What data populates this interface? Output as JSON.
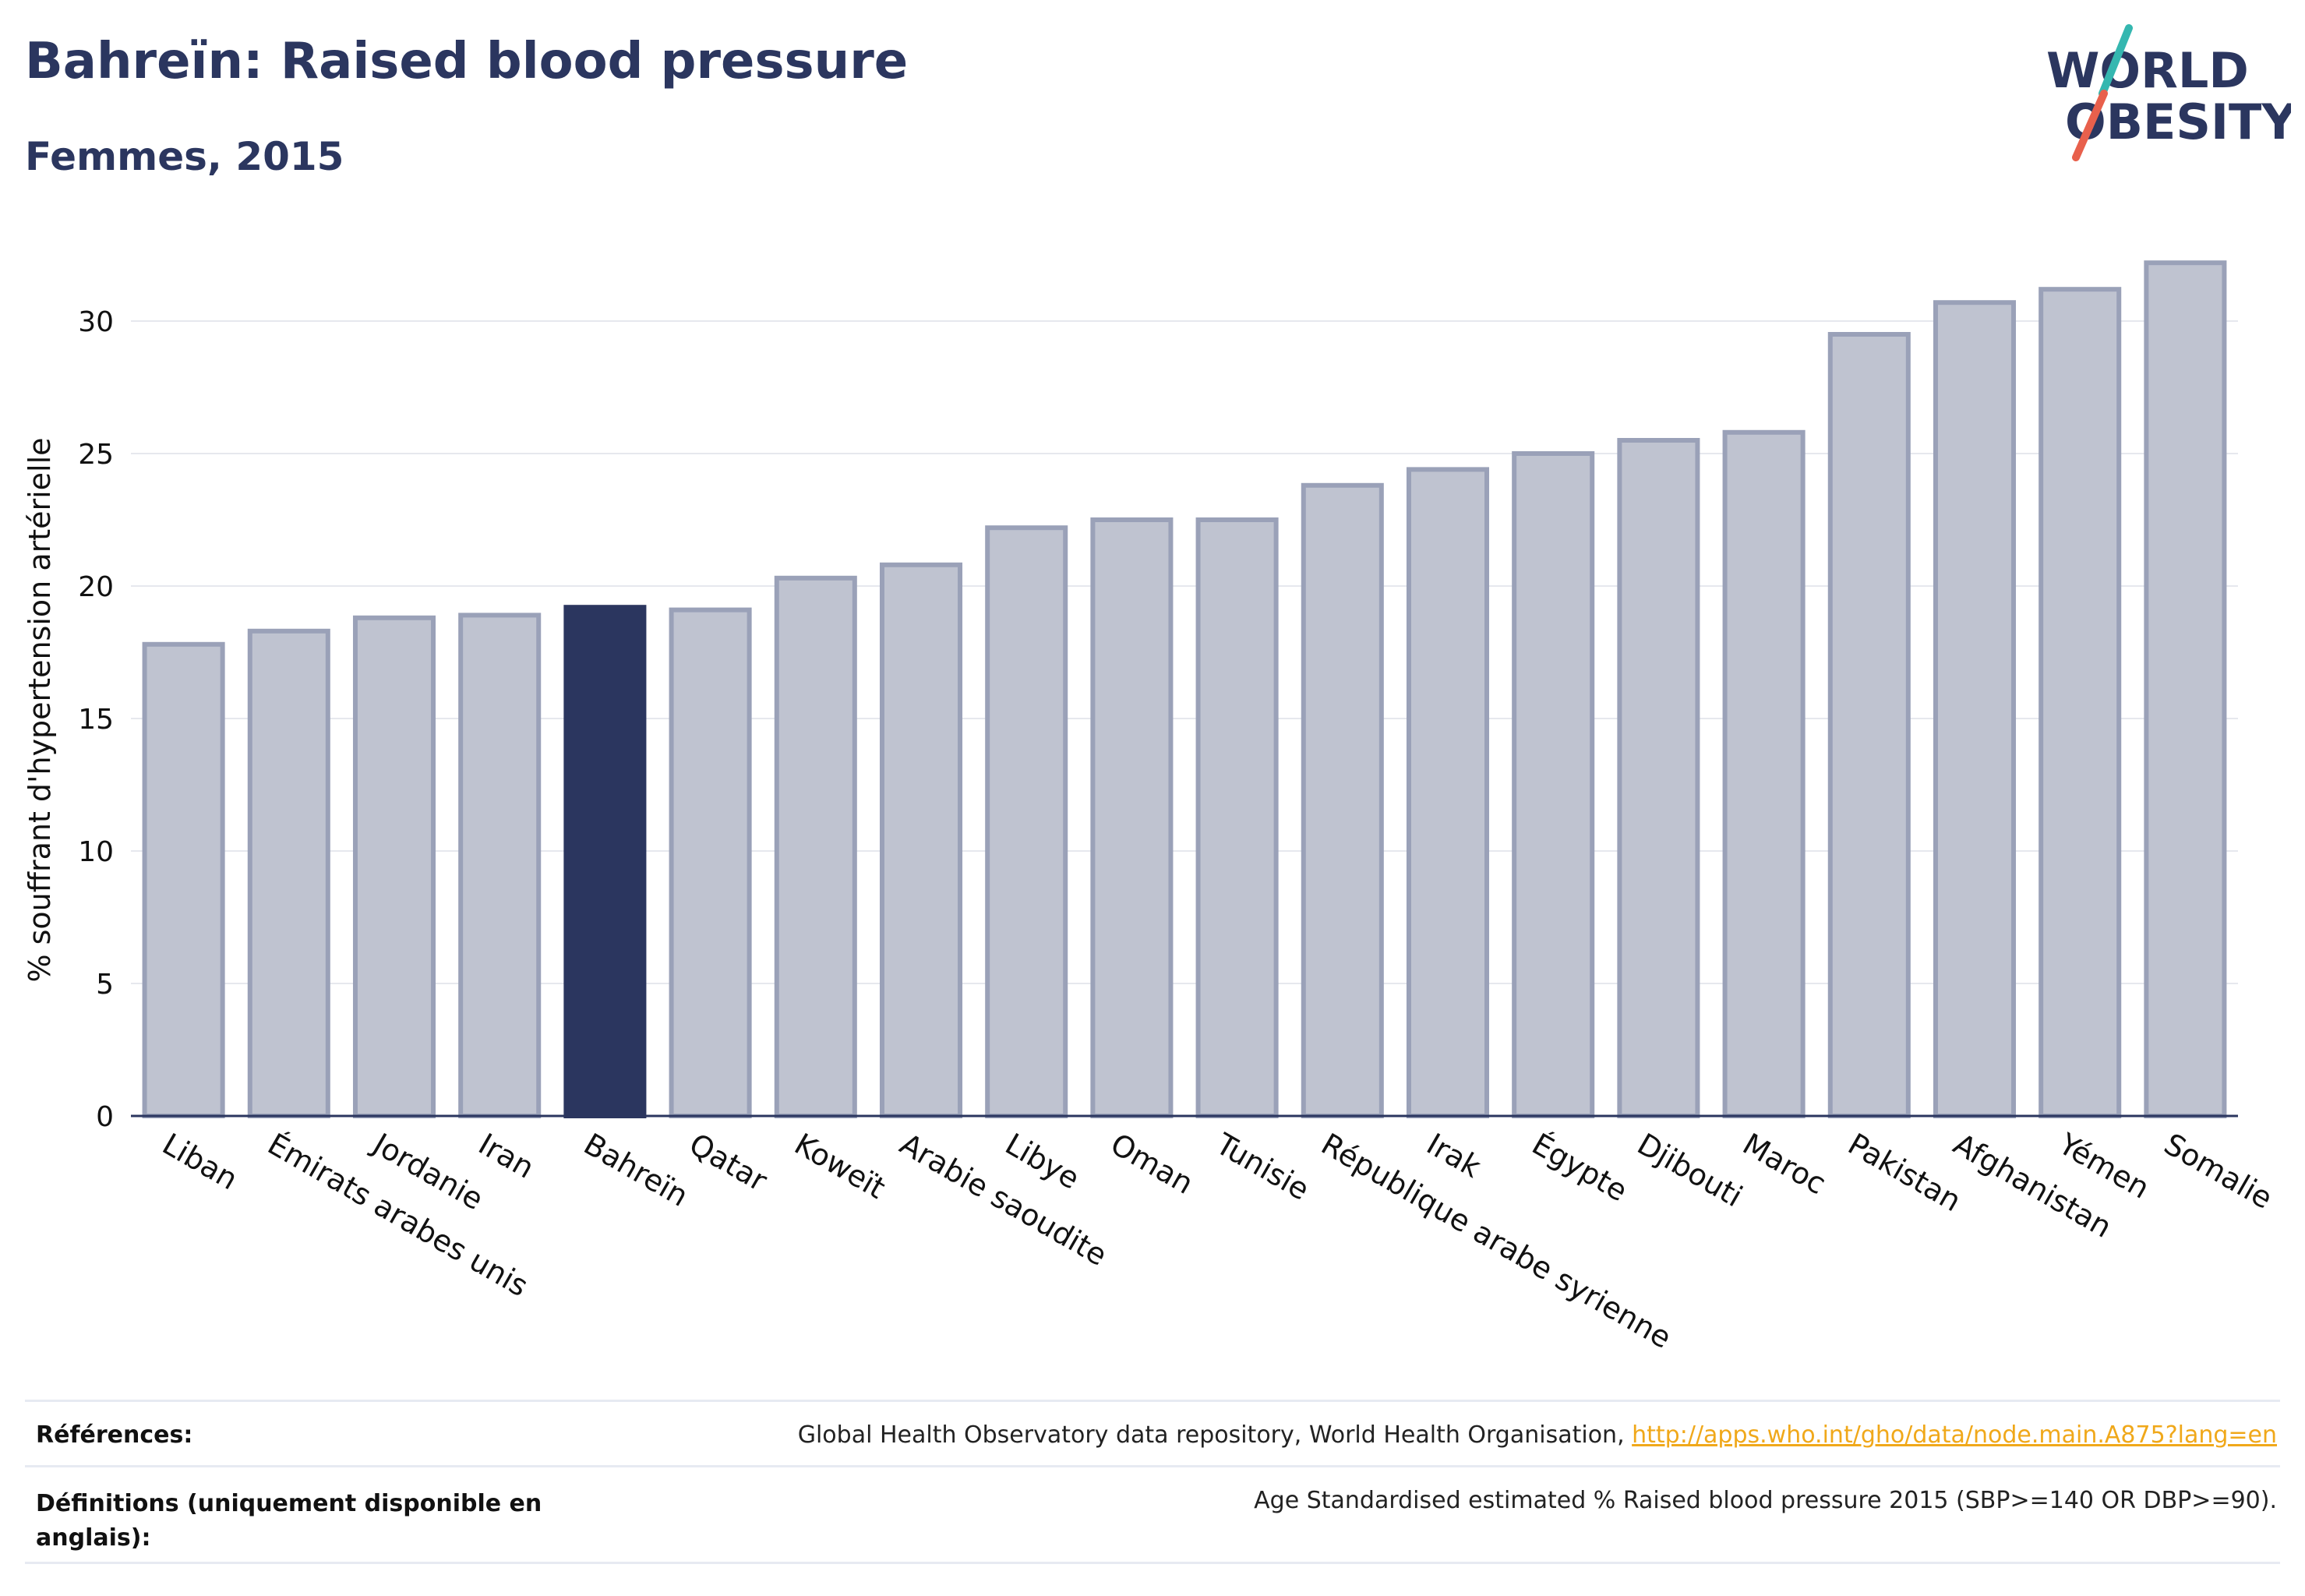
{
  "header": {
    "title": "Bahreïn: Raised blood pressure",
    "subtitle": "Femmes, 2015"
  },
  "logo": {
    "line1": "WORLD",
    "line2": "OBESITY",
    "colors": {
      "text": "#2b365f",
      "slash_teal": "#35b7b0",
      "slash_red": "#e8604c"
    }
  },
  "chart_data": {
    "type": "bar",
    "title": "",
    "xlabel": "",
    "ylabel": "% souffrant d'hypertension artérielle",
    "ylim": [
      0,
      33
    ],
    "yticks": [
      0,
      5,
      10,
      15,
      20,
      25,
      30
    ],
    "grid": true,
    "highlight": "Bahreïn",
    "colors": {
      "bar": "#bfc3d0",
      "bar_edge": "#9aa1b8",
      "highlight": "#2b365f",
      "grid": "#e6e8ee",
      "axis": "#2b365f"
    },
    "categories": [
      "Liban",
      "Émirats arabes unis",
      "Jordanie",
      "Iran",
      "Bahreïn",
      "Qatar",
      "Koweït",
      "Arabie saoudite",
      "Libye",
      "Oman",
      "Tunisie",
      "République arabe syrienne",
      "Irak",
      "Égypte",
      "Djibouti",
      "Maroc",
      "Pakistan",
      "Afghanistan",
      "Yémen",
      "Somalie"
    ],
    "values": [
      17.8,
      18.3,
      18.8,
      18.9,
      19.2,
      19.1,
      20.3,
      20.8,
      22.2,
      22.5,
      22.5,
      23.8,
      24.4,
      25.0,
      25.5,
      25.8,
      29.5,
      30.7,
      31.2,
      32.2
    ]
  },
  "footer": {
    "references_label": "Références:",
    "references_text": "Global Health Observatory data repository, World Health Organisation, ",
    "references_link": "http://apps.who.int/gho/data/node.main.A875?lang=en",
    "definitions_label": "Définitions (uniquement disponible en anglais):",
    "definitions_text": "Age Standardised estimated % Raised blood pressure 2015 (SBP>=140 OR DBP>=90)."
  }
}
